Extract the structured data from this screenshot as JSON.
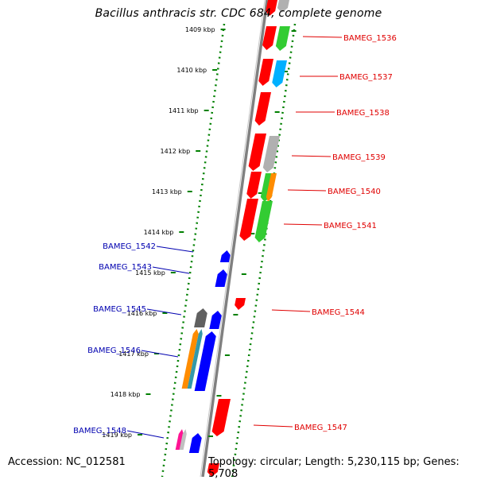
{
  "title": "Bacillus anthracis str. CDC 684, complete genome",
  "accession_text": "Accession: NC_012581",
  "topology_text": "Topology: circular; Length: 5,230,115 bp; Genes: 5,708",
  "colors": {
    "forward_label": "#e00000",
    "reverse_label": "#0000b0",
    "backbone": "#808080",
    "ruler": "#008000",
    "red": "#ff0000",
    "green": "#33cc33",
    "blue": "#0000ff",
    "cyan": "#00b0ff",
    "orange": "#ff8c00",
    "gray": "#b0b0b0",
    "darkgray": "#606060",
    "magenta": "#ff1493",
    "teal": "#3399aa"
  },
  "ruler_labels": [
    "1409 kbp",
    "1410 kbp",
    "1411 kbp",
    "1412 kbp",
    "1413 kbp",
    "1414 kbp",
    "1415 kbp",
    "1416 kbp",
    "1417 kbp",
    "1418 kbp",
    "1419 kbp"
  ],
  "forward_genes": [
    "BAMEG_1536",
    "BAMEG_1537",
    "BAMEG_1538",
    "BAMEG_1539",
    "BAMEG_1540",
    "BAMEG_1541",
    "BAMEG_1544",
    "BAMEG_1547"
  ],
  "reverse_genes": [
    "BAMEG_1542",
    "BAMEG_1543",
    "BAMEG_1545",
    "BAMEG_1546",
    "BAMEG_1548"
  ]
}
